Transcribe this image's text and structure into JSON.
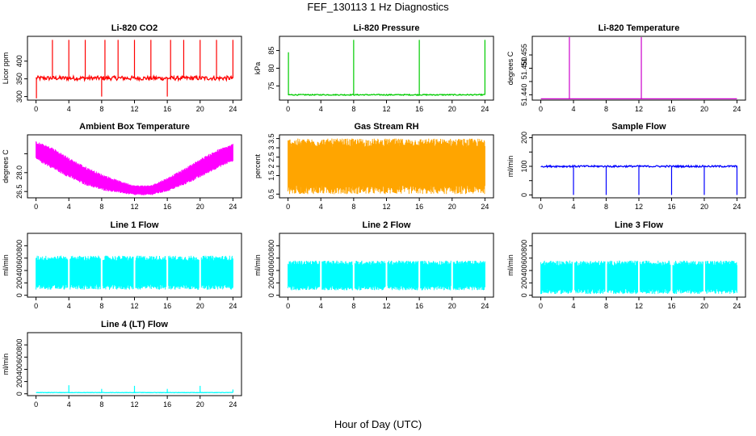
{
  "figure_title": "FEF_130113  1 Hz Diagnostics",
  "x_axis_title": "Hour of Day (UTC)",
  "chart_data": [
    {
      "type": "line",
      "title": "Li-820 CO2",
      "xlabel": "",
      "ylabel": "Licor ppm",
      "color": "#ff0000",
      "xlim": [
        0,
        24
      ],
      "ylim": [
        290,
        470
      ],
      "xticks": [
        0,
        4,
        8,
        12,
        16,
        20,
        24
      ],
      "yticks": [
        300,
        350,
        400
      ],
      "baseline": 352,
      "noise": 6,
      "spikes": [
        {
          "x": 0.05,
          "y": 295
        },
        {
          "x": 2.0,
          "y": 460
        },
        {
          "x": 4.0,
          "y": 460
        },
        {
          "x": 6.0,
          "y": 460
        },
        {
          "x": 8.0,
          "y": 300
        },
        {
          "x": 8.4,
          "y": 460
        },
        {
          "x": 10.0,
          "y": 460
        },
        {
          "x": 12.0,
          "y": 460
        },
        {
          "x": 14.0,
          "y": 460
        },
        {
          "x": 16.0,
          "y": 300
        },
        {
          "x": 16.4,
          "y": 460
        },
        {
          "x": 18.0,
          "y": 460
        },
        {
          "x": 20.0,
          "y": 460
        },
        {
          "x": 22.0,
          "y": 460
        },
        {
          "x": 24.0,
          "y": 460
        }
      ]
    },
    {
      "type": "line",
      "title": "Li-820 Pressure",
      "xlabel": "",
      "ylabel": "kPa",
      "color": "#00cc00",
      "xlim": [
        0,
        24
      ],
      "ylim": [
        71,
        89
      ],
      "xticks": [
        0,
        4,
        8,
        12,
        16,
        20,
        24
      ],
      "yticks": [
        75,
        80,
        85
      ],
      "baseline": 72.5,
      "noise": 0.15,
      "spikes": [
        {
          "x": 0.05,
          "y": 84.5
        },
        {
          "x": 8.0,
          "y": 88
        },
        {
          "x": 16.0,
          "y": 88
        },
        {
          "x": 24.0,
          "y": 88
        }
      ]
    },
    {
      "type": "line",
      "title": "Li-820 Temperature",
      "xlabel": "",
      "ylabel": "degrees C",
      "color": "#cc00cc",
      "xlim": [
        0,
        24
      ],
      "ylim": [
        51.438,
        51.462
      ],
      "xticks": [
        0,
        4,
        8,
        12,
        16,
        20,
        24
      ],
      "yticks": [
        51.44,
        51.445,
        51.45,
        51.455
      ],
      "ytick_labels": [
        "51.440",
        "",
        "51.450",
        "51.455"
      ],
      "baseline": 51.4385,
      "noise": 0,
      "spikes": [
        {
          "x": 3.5,
          "y": 51.462
        },
        {
          "x": 12.3,
          "y": 51.462
        }
      ]
    },
    {
      "type": "area",
      "title": "Ambient Box Temperature",
      "xlabel": "",
      "ylabel": "degrees C",
      "color": "#ff00ff",
      "xlim": [
        0,
        24
      ],
      "ylim": [
        26.0,
        31.0
      ],
      "xticks": [
        0,
        4,
        8,
        12,
        16,
        20,
        24
      ],
      "yticks": [
        26.5,
        28.0,
        29.5
      ],
      "ytick_labels": [
        "26.5",
        "28.0",
        ""
      ],
      "envelope_x": [
        0,
        2,
        4,
        6,
        8,
        10,
        12,
        14,
        16,
        18,
        20,
        22,
        24
      ],
      "upper": [
        30.5,
        30.0,
        29.2,
        28.5,
        27.9,
        27.4,
        27.0,
        27.0,
        27.6,
        28.3,
        29.1,
        29.8,
        30.3
      ],
      "lower": [
        29.0,
        28.3,
        27.6,
        27.0,
        26.6,
        26.4,
        26.2,
        26.2,
        26.5,
        27.0,
        27.6,
        28.3,
        28.9
      ]
    },
    {
      "type": "area",
      "title": "Gas Stream RH",
      "xlabel": "",
      "ylabel": "percent",
      "color": "#ffa500",
      "xlim": [
        0,
        24
      ],
      "ylim": [
        0.3,
        3.7
      ],
      "xticks": [
        0,
        4,
        8,
        12,
        16,
        20,
        24
      ],
      "yticks": [
        0.5,
        1.5,
        2.0,
        2.5,
        3.0,
        3.5
      ],
      "envelope_x": [
        0,
        24
      ],
      "upper": [
        3.5,
        3.5
      ],
      "lower": [
        0.5,
        0.5
      ]
    },
    {
      "type": "line",
      "title": "Sample Flow",
      "xlabel": "",
      "ylabel": "ml/min",
      "color": "#0000ff",
      "xlim": [
        0,
        24
      ],
      "ylim": [
        -10,
        210
      ],
      "xticks": [
        0,
        4,
        8,
        12,
        16,
        20,
        24
      ],
      "yticks": [
        0,
        50,
        100,
        150,
        200
      ],
      "ytick_labels": [
        "0",
        "",
        "100",
        "",
        "200"
      ],
      "baseline": 100,
      "noise": 3,
      "spikes": [
        {
          "x": 4.0,
          "y": 0
        },
        {
          "x": 8.0,
          "y": 0
        },
        {
          "x": 12.0,
          "y": 0
        },
        {
          "x": 16.0,
          "y": 0
        },
        {
          "x": 20.0,
          "y": 0
        },
        {
          "x": 24.0,
          "y": 0
        }
      ]
    },
    {
      "type": "area",
      "title": "Line 1 Flow",
      "xlabel": "",
      "ylabel": "ml/min",
      "color": "#00ffff",
      "xlim": [
        0,
        24
      ],
      "ylim": [
        -30,
        1000
      ],
      "xticks": [
        0,
        4,
        8,
        12,
        16,
        20,
        24
      ],
      "yticks": [
        0,
        200,
        400,
        600,
        800
      ],
      "envelope_x": [
        0,
        24
      ],
      "upper": [
        640,
        640
      ],
      "lower": [
        90,
        90
      ],
      "gaps": [
        4,
        8,
        12,
        16,
        20
      ]
    },
    {
      "type": "area",
      "title": "Line 2 Flow",
      "xlabel": "",
      "ylabel": "ml/min",
      "color": "#00ffff",
      "xlim": [
        0,
        24
      ],
      "ylim": [
        -30,
        1000
      ],
      "xticks": [
        0,
        4,
        8,
        12,
        16,
        20,
        24
      ],
      "yticks": [
        0,
        200,
        400,
        600,
        800
      ],
      "envelope_x": [
        0,
        24
      ],
      "upper": [
        560,
        560
      ],
      "lower": [
        80,
        80
      ],
      "gaps": [
        4,
        8,
        12,
        16,
        20
      ]
    },
    {
      "type": "area",
      "title": "Line 3 Flow",
      "xlabel": "",
      "ylabel": "ml/min",
      "color": "#00ffff",
      "xlim": [
        0,
        24
      ],
      "ylim": [
        -30,
        1000
      ],
      "xticks": [
        0,
        4,
        8,
        12,
        16,
        20,
        24
      ],
      "yticks": [
        0,
        200,
        400,
        600,
        800
      ],
      "envelope_x": [
        0,
        24
      ],
      "upper": [
        560,
        560
      ],
      "lower": [
        20,
        20
      ],
      "gaps": [
        4,
        8,
        12,
        16,
        20
      ]
    },
    {
      "type": "line",
      "title": "Line 4 (LT) Flow",
      "xlabel": "",
      "ylabel": "ml/min",
      "color": "#00ffff",
      "xlim": [
        0,
        24
      ],
      "ylim": [
        -30,
        1000
      ],
      "xticks": [
        0,
        4,
        8,
        12,
        16,
        20,
        24
      ],
      "yticks": [
        0,
        200,
        400,
        600,
        800
      ],
      "baseline": 20,
      "noise": 3,
      "spikes": [
        {
          "x": 4.0,
          "y": 140
        },
        {
          "x": 8.0,
          "y": 80
        },
        {
          "x": 12.0,
          "y": 130
        },
        {
          "x": 16.0,
          "y": 80
        },
        {
          "x": 20.0,
          "y": 130
        },
        {
          "x": 24.0,
          "y": 70
        }
      ]
    }
  ]
}
